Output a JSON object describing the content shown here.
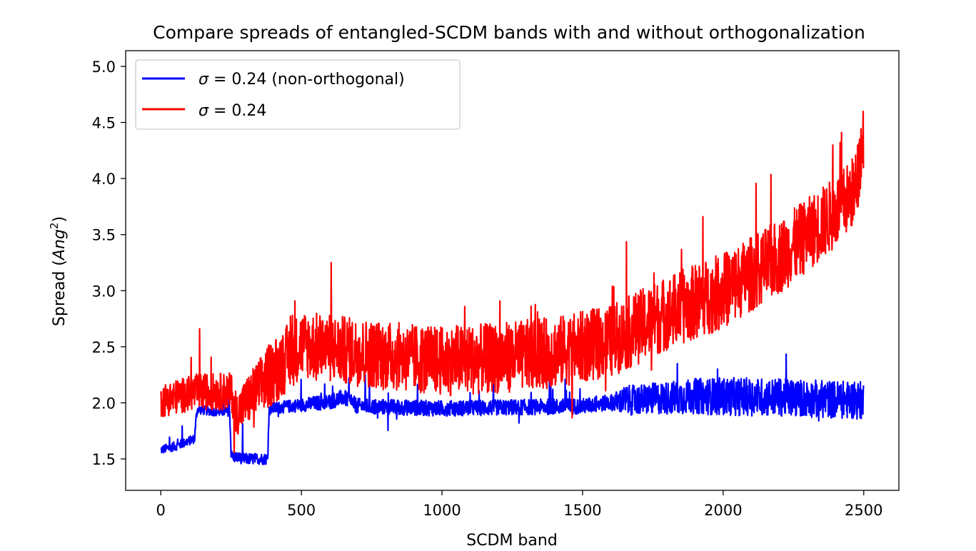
{
  "chart_data": {
    "type": "line",
    "title": "Compare spreads of entangled-SCDM bands with and without orthogonalization",
    "xlabel": "SCDM band",
    "ylabel_prefix": "Spread (",
    "ylabel_math": "Ang",
    "ylabel_sup": "2",
    "ylabel_suffix": ")",
    "xlim": [
      -125,
      2625
    ],
    "ylim": [
      1.22,
      5.14
    ],
    "xticks": [
      0,
      500,
      1000,
      1500,
      2000,
      2500
    ],
    "xtick_labels": [
      "0",
      "500",
      "1000",
      "1500",
      "2000",
      "2500"
    ],
    "yticks": [
      1.5,
      2.0,
      2.5,
      3.0,
      3.5,
      4.0,
      4.5,
      5.0
    ],
    "ytick_labels": [
      "1.5",
      "2.0",
      "2.5",
      "3.0",
      "3.5",
      "4.0",
      "4.5",
      "5.0"
    ],
    "grid": false,
    "legend_position": "top-left",
    "n_points": 2500,
    "series": [
      {
        "name": "σ = 0.24 (non-orthogonal)",
        "legend_math": "σ",
        "legend_rest": " = 0.24 (non-orthogonal)",
        "color": "#0000ff",
        "anchor_x": [
          0,
          60,
          120,
          125,
          130,
          200,
          245,
          250,
          255,
          300,
          380,
          385,
          390,
          600,
          650,
          700,
          1000,
          1500,
          1650,
          1900,
          2200,
          2500
        ],
        "anchor_y": [
          1.58,
          1.62,
          1.68,
          1.85,
          1.94,
          1.92,
          1.92,
          1.55,
          1.52,
          1.5,
          1.5,
          1.92,
          1.95,
          2.01,
          2.05,
          1.97,
          1.95,
          1.97,
          2.02,
          2.06,
          2.05,
          2.02
        ],
        "noise_x": [
          0,
          250,
          260,
          390,
          600,
          1600,
          1650,
          2000,
          2500
        ],
        "noise_amp": [
          0.04,
          0.04,
          0.05,
          0.05,
          0.07,
          0.07,
          0.13,
          0.17,
          0.17
        ],
        "spike_prob": 0.02,
        "spike_amp": 0.28
      },
      {
        "name": "σ = 0.24",
        "legend_math": "σ",
        "legend_rest": " = 0.24",
        "color": "#ff0000",
        "anchor_x": [
          0,
          130,
          250,
          270,
          300,
          400,
          500,
          650,
          800,
          1000,
          1200,
          1400,
          1600,
          1800,
          2000,
          2200,
          2400,
          2470,
          2500
        ],
        "anchor_y": [
          2.02,
          2.1,
          2.1,
          1.9,
          2.0,
          2.28,
          2.52,
          2.47,
          2.42,
          2.37,
          2.4,
          2.45,
          2.55,
          2.8,
          3.0,
          3.3,
          3.7,
          3.9,
          4.4
        ],
        "noise_x": [
          0,
          250,
          400,
          1500,
          2000,
          2500
        ],
        "noise_amp": [
          0.15,
          0.17,
          0.3,
          0.32,
          0.34,
          0.32
        ],
        "spike_prob": 0.022,
        "spike_amp": 0.75
      }
    ]
  }
}
